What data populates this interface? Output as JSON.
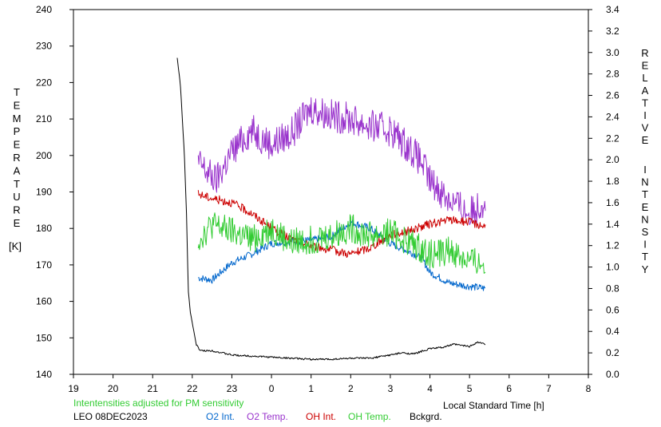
{
  "chart_data": {
    "type": "line",
    "x_unit": "Local Standard Time [h]",
    "xlim": [
      19,
      32
    ],
    "x_tick_labels": [
      "19",
      "20",
      "21",
      "22",
      "23",
      "0",
      "1",
      "2",
      "3",
      "4",
      "5",
      "6",
      "7",
      "8"
    ],
    "ylim_left": [
      140,
      240
    ],
    "y_left_ticks": [
      "140",
      "150",
      "160",
      "170",
      "180",
      "190",
      "200",
      "210",
      "220",
      "230",
      "240"
    ],
    "ylim_right": [
      0.0,
      3.4
    ],
    "y_right_ticks": [
      "0.0",
      "0.2",
      "0.4",
      "0.6",
      "0.8",
      "1.0",
      "1.2",
      "1.4",
      "1.6",
      "1.8",
      "2.0",
      "2.2",
      "2.4",
      "2.6",
      "2.8",
      "3.0",
      "3.2",
      "3.4"
    ],
    "ylabel_left_letters": [
      "T",
      "E",
      "M",
      "P",
      "E",
      "R",
      "A",
      "T",
      "U",
      "R",
      "E"
    ],
    "ylabel_left_unit": "[K]",
    "ylabel_right_word1": [
      "R",
      "E",
      "L",
      "A",
      "T",
      "I",
      "V",
      "E"
    ],
    "ylabel_right_word2": [
      "I",
      "N",
      "T",
      "E",
      "N",
      "S",
      "I",
      "T",
      "Y"
    ],
    "xlabel": "Local Standard Time [h]",
    "note": "Intentensities adjusted for PM sensitivity",
    "station": "LEO 08DEC2023",
    "series": [
      {
        "name": "O2 Int.",
        "color": "#0066cc",
        "axis": "right",
        "x": [
          22.15,
          22.5,
          23.0,
          23.5,
          24.0,
          24.5,
          25.0,
          25.5,
          26.0,
          26.5,
          27.0,
          27.5,
          27.8,
          28.0,
          28.5,
          29.0,
          29.4
        ],
        "y": [
          0.9,
          0.88,
          1.04,
          1.12,
          1.22,
          1.24,
          1.25,
          1.28,
          1.42,
          1.36,
          1.22,
          1.14,
          1.08,
          0.95,
          0.85,
          0.82,
          0.8
        ]
      },
      {
        "name": "O2 Temp.",
        "color": "#9933cc",
        "axis": "left",
        "x": [
          22.15,
          22.6,
          23.0,
          23.5,
          24.0,
          24.5,
          25.0,
          25.5,
          26.0,
          26.5,
          27.0,
          27.5,
          27.8,
          28.0,
          28.5,
          29.0,
          29.4
        ],
        "y": [
          198,
          193,
          201,
          207,
          203,
          206,
          213,
          211,
          210,
          208,
          207,
          202,
          198,
          193,
          188,
          184,
          188
        ]
      },
      {
        "name": "OH Int.",
        "color": "#cc0000",
        "axis": "right",
        "x": [
          22.15,
          22.5,
          23.0,
          23.5,
          24.0,
          24.5,
          25.0,
          25.5,
          26.0,
          26.5,
          27.0,
          27.5,
          28.0,
          28.5,
          29.0,
          29.4
        ],
        "y": [
          1.68,
          1.64,
          1.6,
          1.5,
          1.36,
          1.26,
          1.2,
          1.16,
          1.12,
          1.18,
          1.3,
          1.34,
          1.4,
          1.44,
          1.42,
          1.38
        ]
      },
      {
        "name": "OH Temp.",
        "color": "#33cc33",
        "axis": "left",
        "x": [
          22.15,
          22.5,
          23.0,
          23.5,
          24.0,
          24.5,
          25.0,
          25.5,
          26.0,
          26.5,
          27.0,
          27.5,
          28.0,
          28.5,
          29.0,
          29.4
        ],
        "y": [
          177,
          181,
          179,
          177,
          180,
          176,
          177,
          178,
          180,
          178,
          179,
          176,
          173,
          174,
          171,
          170
        ]
      },
      {
        "name": "Bckgrd.",
        "color": "#000000",
        "axis": "right",
        "x": [
          21.62,
          21.7,
          21.8,
          21.85,
          21.9,
          21.95,
          22.0,
          22.1,
          22.2,
          22.5,
          23.0,
          23.5,
          24.0,
          24.5,
          25.0,
          25.5,
          26.0,
          26.5,
          27.0,
          27.3,
          27.6,
          28.0,
          28.3,
          28.6,
          29.0,
          29.2,
          29.4
        ],
        "y": [
          2.95,
          2.7,
          2.05,
          1.55,
          0.78,
          0.58,
          0.48,
          0.28,
          0.22,
          0.22,
          0.18,
          0.17,
          0.16,
          0.15,
          0.14,
          0.14,
          0.15,
          0.15,
          0.18,
          0.2,
          0.19,
          0.24,
          0.25,
          0.28,
          0.26,
          0.3,
          0.28
        ]
      }
    ]
  }
}
